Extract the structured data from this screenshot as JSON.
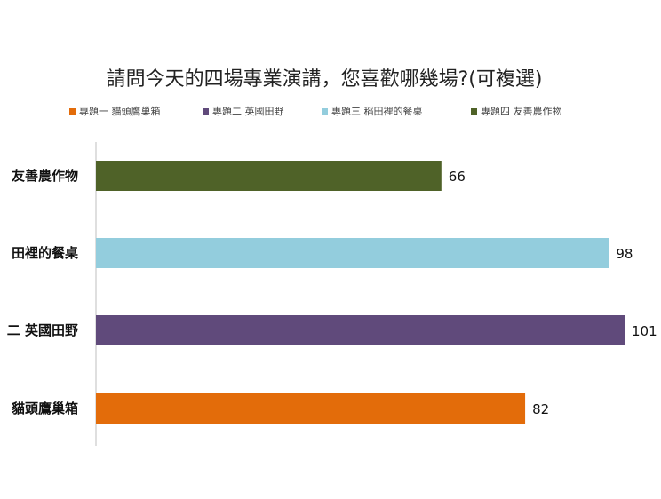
{
  "chart_data": {
    "type": "bar",
    "orientation": "horizontal",
    "title": "請問今天的四場專業演講，您喜歡哪幾場?(可複選)",
    "xlabel": "",
    "ylabel": "",
    "categories": [
      "專題一 貓頭鷹巢箱",
      "專題二 英國田野",
      "專題三 稻田裡的餐桌",
      "專題四 友善農作物"
    ],
    "category_display": [
      "貓頭鷹巢箱",
      "二 英國田野",
      "田裡的餐桌",
      "友善農作物"
    ],
    "values": [
      82,
      101,
      98,
      66
    ],
    "colors": [
      "#e36c0a",
      "#604a7b",
      "#93cddd",
      "#4f6228"
    ],
    "xlim": [
      0,
      101
    ],
    "grid": false,
    "legend_position": "top",
    "data_labels": true
  }
}
